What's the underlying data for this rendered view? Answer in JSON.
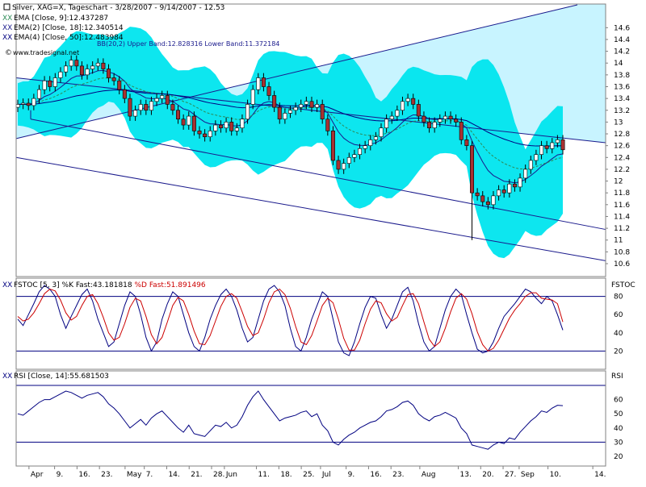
{
  "colors": {
    "band_fill": "#00e5ee",
    "channel_fill": "#c8f4ff",
    "channel_line": "#1a1a8c",
    "up_candle": "#ffffff",
    "down_candle": "#a83232",
    "ema1": "#1a1a8c",
    "ema2": "#2e8b57",
    "ema3": "#000080",
    "stoch_k": "#000080",
    "stoch_d": "#cc0000",
    "rsi": "#000080",
    "frame": "#808080"
  },
  "header": {
    "title": "Silver, XAG=X, Tageschart - 3/28/2007 - 9/14/2007 - 12.53",
    "ema1_label": "EMA [Close, 9]:12.437287",
    "ema2_label": "EMA(2) [Close, 18]:12.340514",
    "ema3_label": "EMA(4) [Close, 50]:12.483984",
    "bands_label": "BB(20,2) Upper Band:12.828316 Lower Band:11.372184",
    "source": "www.tradesignal.net"
  },
  "stoch_header": {
    "prefix": "FSTOC [5, 3] %K Fast:",
    "k_value": "43.181818",
    "d_prefix": " %D Fast:",
    "d_value": "51.891496",
    "side_label": "FSTOC"
  },
  "rsi_header": {
    "label": "RSI [Close, 14]:55.681503",
    "side_label": "RSI"
  },
  "x_axis": {
    "ticks": [
      {
        "label": "Apr",
        "date": "2007-04-01"
      },
      {
        "label": "9.",
        "date": "2007-04-09"
      },
      {
        "label": "16.",
        "date": "2007-04-16"
      },
      {
        "label": "23.",
        "date": "2007-04-23"
      },
      {
        "label": "May",
        "date": "2007-05-01"
      },
      {
        "label": "7.",
        "date": "2007-05-07"
      },
      {
        "label": "14.",
        "date": "2007-05-14"
      },
      {
        "label": "21.",
        "date": "2007-05-21"
      },
      {
        "label": "28.",
        "date": "2007-05-28"
      },
      {
        "label": "Jun",
        "date": "2007-06-01"
      },
      {
        "label": "11.",
        "date": "2007-06-11"
      },
      {
        "label": "18.",
        "date": "2007-06-18"
      },
      {
        "label": "25.",
        "date": "2007-06-25"
      },
      {
        "label": "Jul",
        "date": "2007-07-01"
      },
      {
        "label": "9.",
        "date": "2007-07-09"
      },
      {
        "label": "16.",
        "date": "2007-07-16"
      },
      {
        "label": "23.",
        "date": "2007-07-23"
      },
      {
        "label": "Aug",
        "date": "2007-08-01"
      },
      {
        "label": "13.",
        "date": "2007-08-13"
      },
      {
        "label": "20.",
        "date": "2007-08-20"
      },
      {
        "label": "27.",
        "date": "2007-08-27"
      },
      {
        "label": "Sep",
        "date": "2007-09-01"
      },
      {
        "label": "10.",
        "date": "2007-09-10"
      },
      {
        "label": "14.",
        "date": "2007-09-24"
      }
    ]
  },
  "chart_data": [
    {
      "type": "candlestick",
      "name": "Silver price",
      "ylim": [
        10.6,
        14.7
      ],
      "yticks": [
        10.6,
        10.8,
        11,
        11.2,
        11.4,
        11.6,
        11.8,
        12,
        12.2,
        12.4,
        12.6,
        12.8,
        13,
        13.2,
        13.4,
        13.6,
        13.8,
        14,
        14.2,
        14.4,
        14.6
      ],
      "ytick_labels": [
        "10.6",
        "10.8",
        "11",
        "11.2",
        "11.4",
        "11.6",
        "11.8",
        "12",
        "12.2",
        "12.4",
        "12.6",
        "12.8",
        "13",
        "13.2",
        "13.4",
        "13.6",
        "13.8",
        "14",
        "14.2",
        "14.4",
        "14.6"
      ],
      "close": [
        13.3,
        13.32,
        13.28,
        13.4,
        13.55,
        13.7,
        13.6,
        13.75,
        13.85,
        13.95,
        14.05,
        13.95,
        13.8,
        13.9,
        13.95,
        14.0,
        13.9,
        13.75,
        13.7,
        13.55,
        13.4,
        13.1,
        13.2,
        13.3,
        13.2,
        13.35,
        13.4,
        13.45,
        13.3,
        13.2,
        13.05,
        12.95,
        13.1,
        12.85,
        12.8,
        12.75,
        12.85,
        12.95,
        12.9,
        13.0,
        12.85,
        12.9,
        13.05,
        13.3,
        13.55,
        13.75,
        13.6,
        13.45,
        13.25,
        13.05,
        13.15,
        13.2,
        13.25,
        13.3,
        13.35,
        13.25,
        13.3,
        13.05,
        12.85,
        12.35,
        12.2,
        12.3,
        12.4,
        12.45,
        12.55,
        12.6,
        12.7,
        12.75,
        12.9,
        13.05,
        13.1,
        13.2,
        13.35,
        13.4,
        13.3,
        13.1,
        13.0,
        12.9,
        13.0,
        13.05,
        13.1,
        13.05,
        13.0,
        12.7,
        12.6,
        11.8,
        11.75,
        11.65,
        11.6,
        11.75,
        11.85,
        11.8,
        11.95,
        11.9,
        12.05,
        12.2,
        12.35,
        12.45,
        12.6,
        12.55,
        12.65,
        12.7,
        12.53
      ],
      "ema_series": [
        {
          "name": "EMA [Close, 9]",
          "last": 12.437287
        },
        {
          "name": "EMA(2) [Close, 18]",
          "last": 12.340514
        },
        {
          "name": "EMA(4) [Close, 50]",
          "last": 12.483984
        }
      ],
      "bollinger": {
        "upper": 12.828316,
        "lower": 11.372184
      },
      "trend_channel": {
        "upper_start": 13.75,
        "upper_end": 12.65,
        "lower_start": 12.4,
        "lower_end": 10.65,
        "mid_start": 12.9,
        "mid_end": 11.2,
        "rising_start": 12.72,
        "rising_end": 14.6
      }
    },
    {
      "type": "line",
      "name": "FSTOC [5, 3]",
      "ylim": [
        0,
        100
      ],
      "yticks": [
        20,
        40,
        60,
        80
      ],
      "ytick_labels": [
        "20",
        "40",
        "60",
        "80"
      ],
      "reference_lines": [
        20,
        80
      ],
      "series": [
        {
          "name": "%K Fast",
          "values": [
            55,
            48,
            60,
            72,
            85,
            92,
            88,
            80,
            60,
            45,
            58,
            70,
            82,
            88,
            75,
            55,
            40,
            25,
            30,
            50,
            70,
            85,
            80,
            60,
            35,
            20,
            30,
            55,
            72,
            85,
            80,
            60,
            40,
            25,
            20,
            35,
            55,
            70,
            82,
            88,
            80,
            65,
            45,
            30,
            35,
            55,
            75,
            88,
            92,
            85,
            70,
            45,
            25,
            20,
            35,
            55,
            70,
            85,
            80,
            55,
            30,
            18,
            15,
            30,
            50,
            68,
            80,
            78,
            60,
            45,
            55,
            70,
            85,
            90,
            75,
            50,
            30,
            20,
            25,
            45,
            65,
            80,
            88,
            82,
            60,
            40,
            22,
            18,
            20,
            30,
            45,
            58,
            65,
            72,
            80,
            88,
            85,
            78,
            72,
            80,
            75,
            60,
            43
          ]
        },
        {
          "name": "%D Fast",
          "values": [
            58,
            53,
            55,
            62,
            72,
            83,
            88,
            86,
            76,
            62,
            54,
            58,
            70,
            80,
            82,
            72,
            57,
            40,
            32,
            35,
            50,
            68,
            78,
            75,
            58,
            38,
            28,
            35,
            52,
            70,
            79,
            75,
            60,
            42,
            28,
            27,
            37,
            53,
            69,
            80,
            83,
            78,
            63,
            47,
            37,
            40,
            55,
            73,
            85,
            88,
            82,
            67,
            47,
            30,
            27,
            37,
            53,
            70,
            78,
            73,
            55,
            34,
            21,
            21,
            32,
            50,
            66,
            75,
            73,
            61,
            53,
            57,
            70,
            82,
            83,
            72,
            52,
            33,
            25,
            30,
            45,
            63,
            78,
            83,
            77,
            61,
            41,
            27,
            20,
            23,
            32,
            44,
            56,
            65,
            72,
            80,
            84,
            84,
            78,
            77,
            76,
            72,
            52
          ]
        }
      ]
    },
    {
      "type": "line",
      "name": "RSI [Close, 14]",
      "ylim": [
        20,
        70
      ],
      "yticks": [
        20,
        30,
        40,
        50,
        60
      ],
      "ytick_labels": [
        "20",
        "30",
        "40",
        "50",
        "60"
      ],
      "reference_lines": [
        30,
        70
      ],
      "series": [
        {
          "name": "RSI",
          "values": [
            50,
            49,
            52,
            55,
            58,
            60,
            60,
            62,
            64,
            66,
            65,
            63,
            61,
            63,
            64,
            65,
            62,
            57,
            54,
            50,
            45,
            40,
            43,
            46,
            42,
            47,
            50,
            52,
            48,
            44,
            40,
            37,
            42,
            36,
            35,
            34,
            38,
            42,
            41,
            44,
            40,
            42,
            48,
            56,
            62,
            66,
            60,
            55,
            50,
            45,
            47,
            48,
            49,
            51,
            52,
            48,
            50,
            42,
            38,
            30,
            28,
            32,
            35,
            37,
            40,
            42,
            44,
            45,
            48,
            52,
            53,
            55,
            58,
            59,
            56,
            50,
            47,
            45,
            48,
            49,
            51,
            49,
            47,
            40,
            36,
            28,
            27,
            26,
            25,
            28,
            30,
            29,
            33,
            32,
            37,
            41,
            45,
            48,
            52,
            51,
            54,
            56,
            55.7
          ]
        }
      ]
    }
  ]
}
